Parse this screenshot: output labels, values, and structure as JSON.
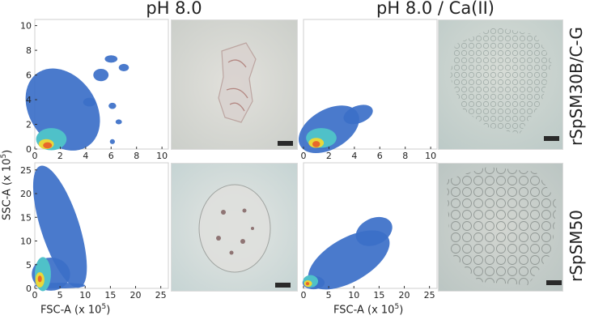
{
  "columns": {
    "col1": "pH 8.0",
    "col2": "pH 8.0 / Ca(II)"
  },
  "rows": {
    "row1": "rSpSM30B/C-G",
    "row2": "rSpSM50"
  },
  "axes": {
    "ylabel": "SSC-A (x 10",
    "ylabel_exp": "5",
    "ylabel_close": ")",
    "xlabel": "FSC-A (x 10",
    "xlabel_exp": "5",
    "xlabel_close": ")"
  },
  "chart_data": [
    {
      "type": "heatmap",
      "panel": "top-left",
      "xlim": [
        0,
        10.5
      ],
      "ylim": [
        0,
        10.5
      ],
      "xticks": [
        0,
        2,
        4,
        6,
        8,
        10
      ],
      "yticks": [
        0,
        2,
        4,
        6,
        8,
        10
      ],
      "peak": [
        1.0,
        0.3
      ]
    },
    {
      "type": "heatmap",
      "panel": "top-right",
      "xlim": [
        0,
        10.5
      ],
      "ylim": [
        0,
        10.5
      ],
      "xticks": [
        0,
        2,
        4,
        6,
        8,
        10
      ],
      "yticks": [],
      "peak": [
        1.0,
        0.4
      ]
    },
    {
      "type": "heatmap",
      "panel": "bottom-left",
      "xlim": [
        0,
        26.5
      ],
      "ylim": [
        0,
        26.5
      ],
      "xticks": [
        0,
        5,
        10,
        15,
        20,
        25
      ],
      "yticks": [
        0,
        5,
        10,
        15,
        20,
        25
      ],
      "peak": [
        1.0,
        2.0
      ]
    },
    {
      "type": "heatmap",
      "panel": "bottom-right",
      "xlim": [
        0,
        26.5
      ],
      "ylim": [
        0,
        26.5
      ],
      "xticks": [
        0,
        5,
        10,
        15,
        20,
        25
      ],
      "yticks": [],
      "peak": [
        0.8,
        1.0
      ]
    }
  ],
  "colors": {
    "density_low": "#3b6fc8",
    "density_mid": "#4fc1c9",
    "density_high": "#e9d83a",
    "density_peak": "#e8682a",
    "micro_bg_1": "#d9dcd6",
    "micro_bg_2": "#c9d6d4",
    "scalebar": "#2a2a2a"
  }
}
